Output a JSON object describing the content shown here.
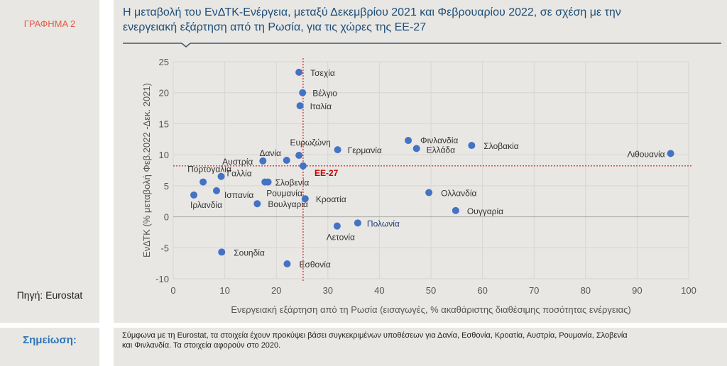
{
  "figure_label": "ΓΡΑΦΗΜΑ 2",
  "title_line1": "Η μεταβολή του ΕνΔΤΚ-Ενέργεια, μεταξύ Δεκεμβρίου 2021 και Φεβρουαρίου 2022, σε σχέση με την",
  "title_line2": "ενεργειακή εξάρτηση από τη Ρωσία, για τις χώρες της ΕΕ-27",
  "source": "Πηγή: Eurostat",
  "note_label": "Σημείωση:",
  "note_line1": "Σύμφωνα με τη Eurostat, τα στοιχεία έχουν προκύψει βάσει συγκεκριμένων υποθέσεων για Δανία, Εσθονία, Κροατία, Αυστρία, Ρουμανία, Σλοβενία",
  "note_line2": "και Φινλανδία. Τα στοιχεία αφορούν στο 2020.",
  "colors": {
    "point": "#4472c4",
    "reference": "#c00000",
    "title": "#1f4e79",
    "figure_label": "#e05a47",
    "note_label": "#2e75b6"
  },
  "chart_data": {
    "type": "scatter",
    "xlabel": "Ενεργειακή εξάρτηση από τη Ρωσία (εισαγωγές, % ακαθάριστης διαθέσιμης ποσότητας ενέργειας)",
    "ylabel": "ΕνΔΤΚ (% μεταβολή Φεβ.2022 -Δεκ. 2021)",
    "xlim": [
      0,
      100
    ],
    "ylim": [
      -10,
      25
    ],
    "xticks": [
      0,
      10,
      20,
      30,
      40,
      50,
      60,
      70,
      80,
      90,
      100
    ],
    "yticks": [
      -10,
      -5,
      0,
      5,
      10,
      15,
      20,
      25
    ],
    "grid": true,
    "reference": {
      "label": "ΕΕ-27",
      "x": 25.2,
      "y": 8.2
    },
    "points": [
      {
        "name": "Τσεχία",
        "x": 24.4,
        "y": 23.3
      },
      {
        "name": "Βέλγιο",
        "x": 25.1,
        "y": 20.0
      },
      {
        "name": "Ιταλία",
        "x": 24.6,
        "y": 17.9
      },
      {
        "name": "Ευρωζώνη",
        "x": 24.4,
        "y": 9.9
      },
      {
        "name": "Γερμανία",
        "x": 31.9,
        "y": 10.8
      },
      {
        "name": "Δανία",
        "x": 22.0,
        "y": 9.1
      },
      {
        "name": "Αυστρία",
        "x": 17.4,
        "y": 9.0
      },
      {
        "name": "ΕΕ-27",
        "x": 25.2,
        "y": 8.2
      },
      {
        "name": "Πορτογαλία",
        "x": 5.8,
        "y": 5.6
      },
      {
        "name": "Γαλλία",
        "x": 9.3,
        "y": 6.5
      },
      {
        "name": "Ισπανία",
        "x": 8.4,
        "y": 4.2
      },
      {
        "name": "Ιρλανδία",
        "x": 4.0,
        "y": 3.5
      },
      {
        "name": "Σλοβενία",
        "x": 18.4,
        "y": 5.6
      },
      {
        "name": "Ρουμανία",
        "x": 17.8,
        "y": 5.6
      },
      {
        "name": "Βουλγαρία",
        "x": 16.3,
        "y": 2.1
      },
      {
        "name": "Κροατία",
        "x": 25.6,
        "y": 2.9
      },
      {
        "name": "Λετονία",
        "x": 31.8,
        "y": -1.5
      },
      {
        "name": "Πολωνία",
        "x": 35.8,
        "y": -1.0
      },
      {
        "name": "Σουηδία",
        "x": 9.4,
        "y": -5.7
      },
      {
        "name": "Εσθονία",
        "x": 22.1,
        "y": -7.6
      },
      {
        "name": "Φινλανδία",
        "x": 45.6,
        "y": 12.3
      },
      {
        "name": "Ελλάδα",
        "x": 47.2,
        "y": 11.0
      },
      {
        "name": "Σλοβακία",
        "x": 57.9,
        "y": 11.5
      },
      {
        "name": "Ολλανδία",
        "x": 49.6,
        "y": 3.9
      },
      {
        "name": "Ουγγαρία",
        "x": 54.8,
        "y": 1.0
      },
      {
        "name": "Λιθουανία",
        "x": 96.5,
        "y": 10.2
      }
    ]
  }
}
